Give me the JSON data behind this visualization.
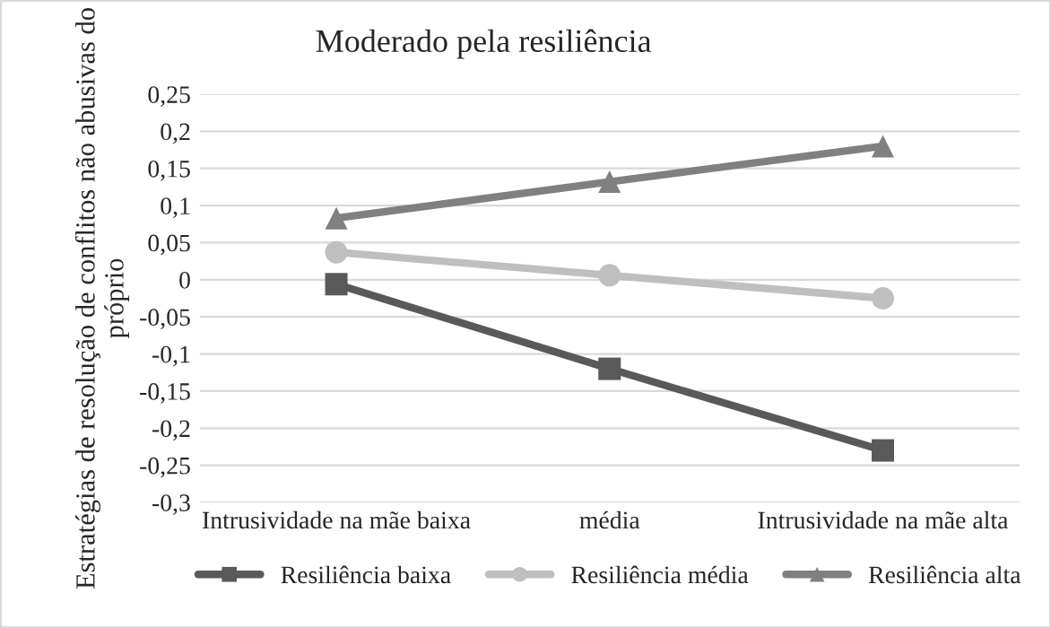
{
  "chart_data": {
    "type": "line",
    "title": "Moderado pela resiliência",
    "ylabel": "Estratégias de resolução de conflitos não abusivas do próprio",
    "categories": [
      "Intrusividade na mãe baixa",
      "média",
      "Intrusividade na mãe alta"
    ],
    "series": [
      {
        "name": "Resiliência baixa",
        "color": "#595959",
        "marker": "square",
        "values": [
          -0.006,
          -0.12,
          -0.23
        ]
      },
      {
        "name": "Resiliência média",
        "color": "#bfbfbf",
        "marker": "circle",
        "values": [
          0.037,
          0.006,
          -0.025
        ]
      },
      {
        "name": "Resiliência alta",
        "color": "#808080",
        "marker": "triangle",
        "values": [
          0.083,
          0.132,
          0.18
        ]
      }
    ],
    "ylim": [
      -0.3,
      0.25
    ],
    "yticks": [
      {
        "value": -0.3,
        "label": "-0,3"
      },
      {
        "value": -0.25,
        "label": "-0,25"
      },
      {
        "value": -0.2,
        "label": "-0,2"
      },
      {
        "value": -0.15,
        "label": "-0,15"
      },
      {
        "value": -0.1,
        "label": "-0,1"
      },
      {
        "value": -0.05,
        "label": "-0,05"
      },
      {
        "value": 0,
        "label": "0"
      },
      {
        "value": 0.05,
        "label": "0,05"
      },
      {
        "value": 0.1,
        "label": "0,1"
      },
      {
        "value": 0.15,
        "label": "0,15"
      },
      {
        "value": 0.2,
        "label": "0,2"
      },
      {
        "value": 0.25,
        "label": "0,25"
      }
    ],
    "grid": "y",
    "legend": "bottom",
    "line_style": "solid"
  }
}
